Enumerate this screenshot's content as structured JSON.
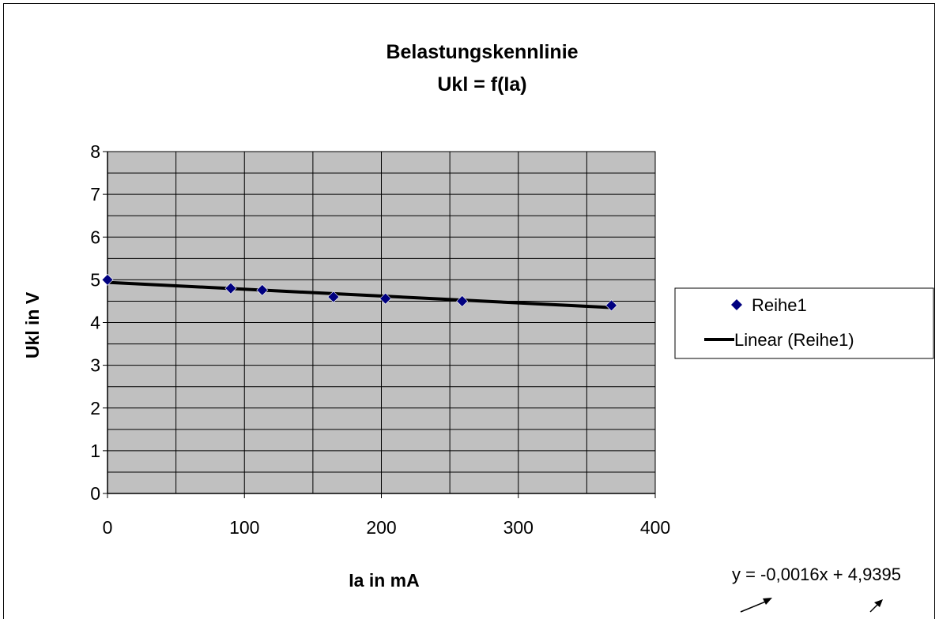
{
  "chart_data": {
    "type": "scatter",
    "title": [
      "Belastungskennlinie",
      "Ukl = f(Ia)"
    ],
    "xlabel": "Ia in mA",
    "ylabel": "Ukl in V",
    "xlim": [
      0,
      400
    ],
    "ylim": [
      0,
      8
    ],
    "xticks": [
      0,
      100,
      200,
      300,
      400
    ],
    "yticks": [
      0,
      1,
      2,
      3,
      4,
      5,
      6,
      7,
      8
    ],
    "x_tick_labels": [
      "0",
      "100",
      "200",
      "300",
      "400"
    ],
    "y_tick_labels": [
      "0",
      "1",
      "2",
      "3",
      "4",
      "5",
      "6",
      "7",
      "8"
    ],
    "grid": true,
    "plot_background": "#c0c0c0",
    "legend_position": "right",
    "series": [
      {
        "name": "Reihe1",
        "color": "#000080",
        "marker": "diamond",
        "x": [
          0,
          90,
          113,
          165,
          203,
          259,
          368
        ],
        "y": [
          5.0,
          4.8,
          4.76,
          4.6,
          4.56,
          4.5,
          4.4
        ]
      }
    ],
    "trendline": {
      "name": "Linear (Reihe1)",
      "type": "linear",
      "slope": -0.0016,
      "intercept": 4.9395,
      "x_range": [
        0,
        368
      ],
      "color": "#000000"
    },
    "annotations": {
      "equation": "y = -0,0016x + 4,9395"
    }
  }
}
